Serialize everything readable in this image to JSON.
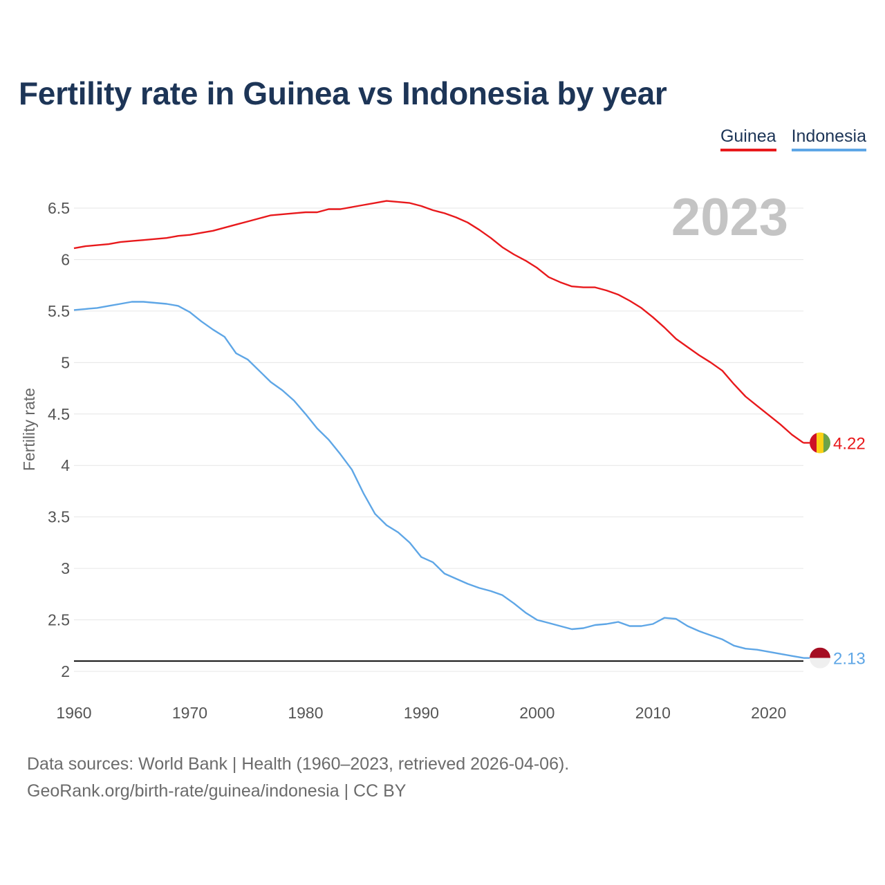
{
  "chart_data": {
    "type": "line",
    "title": "Fertility rate in Guinea vs Indonesia by year",
    "ylabel": "Fertility rate",
    "xlabel": "",
    "xlim": [
      1960,
      2023
    ],
    "ylim": [
      2,
      6.5
    ],
    "x_ticks": [
      1960,
      1970,
      1980,
      1990,
      2000,
      2010,
      2020
    ],
    "y_ticks": [
      2,
      2.5,
      3,
      3.5,
      4,
      4.5,
      5,
      5.5,
      6,
      6.5
    ],
    "y_tick_labels": [
      "2",
      "2.5",
      "3",
      "3.5",
      "4",
      "4.5",
      "5",
      "5.5",
      "6",
      "6.5"
    ],
    "year_label": "2023",
    "reference_line": 2.1,
    "series": [
      {
        "name": "Guinea",
        "color": "#e8191c",
        "end_label": "4.22",
        "flag": "guinea-flag",
        "x": [
          1960,
          1961,
          1962,
          1963,
          1964,
          1965,
          1966,
          1967,
          1968,
          1969,
          1970,
          1971,
          1972,
          1973,
          1974,
          1975,
          1976,
          1977,
          1978,
          1979,
          1980,
          1981,
          1982,
          1983,
          1984,
          1985,
          1986,
          1987,
          1988,
          1989,
          1990,
          1991,
          1992,
          1993,
          1994,
          1995,
          1996,
          1997,
          1998,
          1999,
          2000,
          2001,
          2002,
          2003,
          2004,
          2005,
          2006,
          2007,
          2008,
          2009,
          2010,
          2011,
          2012,
          2013,
          2014,
          2015,
          2016,
          2017,
          2018,
          2019,
          2020,
          2021,
          2022,
          2023
        ],
        "values": [
          6.11,
          6.13,
          6.14,
          6.15,
          6.17,
          6.18,
          6.19,
          6.2,
          6.21,
          6.23,
          6.24,
          6.26,
          6.28,
          6.31,
          6.34,
          6.37,
          6.4,
          6.43,
          6.44,
          6.45,
          6.46,
          6.46,
          6.49,
          6.49,
          6.51,
          6.53,
          6.55,
          6.57,
          6.56,
          6.55,
          6.52,
          6.48,
          6.45,
          6.41,
          6.36,
          6.29,
          6.21,
          6.12,
          6.05,
          5.99,
          5.92,
          5.83,
          5.78,
          5.74,
          5.73,
          5.73,
          5.7,
          5.66,
          5.6,
          5.53,
          5.44,
          5.34,
          5.23,
          5.15,
          5.07,
          5.0,
          4.92,
          4.79,
          4.67,
          4.58,
          4.49,
          4.4,
          4.3,
          4.22
        ]
      },
      {
        "name": "Indonesia",
        "color": "#5ea6e6",
        "end_label": "2.13",
        "flag": "indonesia-flag",
        "x": [
          1960,
          1961,
          1962,
          1963,
          1964,
          1965,
          1966,
          1967,
          1968,
          1969,
          1970,
          1971,
          1972,
          1973,
          1974,
          1975,
          1976,
          1977,
          1978,
          1979,
          1980,
          1981,
          1982,
          1983,
          1984,
          1985,
          1986,
          1987,
          1988,
          1989,
          1990,
          1991,
          1992,
          1993,
          1994,
          1995,
          1996,
          1997,
          1998,
          1999,
          2000,
          2001,
          2002,
          2003,
          2004,
          2005,
          2006,
          2007,
          2008,
          2009,
          2010,
          2011,
          2012,
          2013,
          2014,
          2015,
          2016,
          2017,
          2018,
          2019,
          2020,
          2021,
          2022,
          2023
        ],
        "values": [
          5.51,
          5.52,
          5.53,
          5.55,
          5.57,
          5.59,
          5.59,
          5.58,
          5.57,
          5.55,
          5.49,
          5.4,
          5.32,
          5.25,
          5.09,
          5.03,
          4.92,
          4.81,
          4.73,
          4.63,
          4.5,
          4.36,
          4.25,
          4.11,
          3.96,
          3.73,
          3.53,
          3.42,
          3.35,
          3.25,
          3.11,
          3.06,
          2.95,
          2.9,
          2.85,
          2.81,
          2.78,
          2.74,
          2.66,
          2.57,
          2.5,
          2.47,
          2.44,
          2.41,
          2.42,
          2.45,
          2.46,
          2.48,
          2.44,
          2.44,
          2.46,
          2.52,
          2.51,
          2.44,
          2.39,
          2.35,
          2.31,
          2.25,
          2.22,
          2.21,
          2.19,
          2.17,
          2.15,
          2.13
        ]
      }
    ]
  },
  "footer": {
    "line1": "Data sources: World Bank | Health (1960–2023, retrieved 2026-04-06).",
    "line2": "GeoRank.org/birth-rate/guinea/indonesia | CC BY"
  }
}
